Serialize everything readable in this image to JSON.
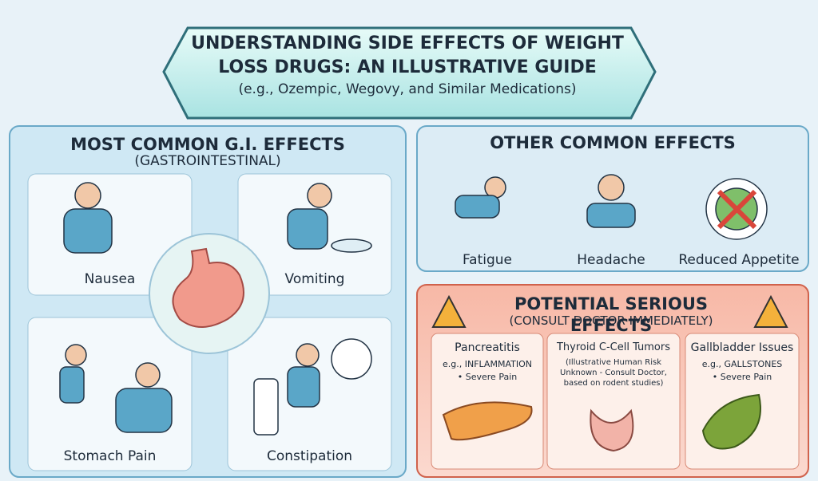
{
  "header": {
    "title": "UNDERSTANDING SIDE EFFECTS OF WEIGHT LOSS DRUGS: AN ILLUSTRATIVE GUIDE",
    "subtitle": "(e.g., Ozempic, Wegovy, and Similar Medications)"
  },
  "gi_effects": {
    "title": "MOST COMMON G.I. EFFECTS",
    "subtitle": "(GASTROINTESTINAL)",
    "items": [
      "Nausea",
      "Vomiting",
      "Stomach Pain",
      "Constipation"
    ]
  },
  "other_effects": {
    "title": "OTHER COMMON EFFECTS",
    "items": [
      "Fatigue",
      "Headache",
      "Reduced Appetite"
    ]
  },
  "serious_effects": {
    "title": "POTENTIAL SERIOUS EFFECTS",
    "subtitle": "(CONSULT DOCTOR IMMEDIATELY)",
    "items": [
      {
        "name": "Pancreatitis",
        "detail": "e.g., INFLAMMATION",
        "note": "• Severe Pain"
      },
      {
        "name": "Thyroid C-Cell Tumors",
        "detail": "(Illustrative Human Risk Unknown - Consult Doctor, based on rodent studies)"
      },
      {
        "name": "Gallbladder Issues",
        "detail": "e.g., GALLSTONES",
        "note": "• Severe Pain"
      }
    ]
  }
}
